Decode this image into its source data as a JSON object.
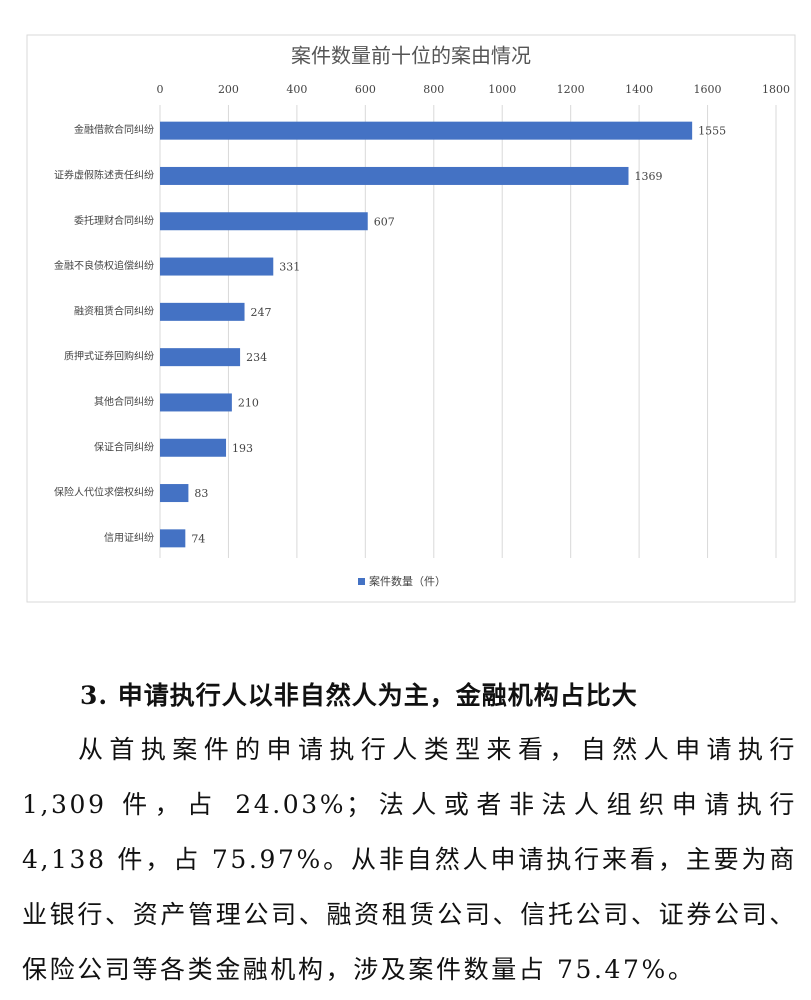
{
  "chart_data": {
    "type": "bar",
    "orientation": "horizontal",
    "title": "案件数量前十位的案由情况",
    "categories": [
      "金融借款合同纠纷",
      "证券虚假陈述责任纠纷",
      "委托理财合同纠纷",
      "金融不良债权追偿纠纷",
      "融资租赁合同纠纷",
      "质押式证券回购纠纷",
      "其他合同纠纷",
      "保证合同纠纷",
      "保险人代位求偿权纠纷",
      "信用证纠纷"
    ],
    "series": [
      {
        "name": "案件数量（件）",
        "color": "#4472c4",
        "values": [
          1555,
          1369,
          607,
          331,
          247,
          234,
          210,
          193,
          83,
          74
        ]
      }
    ],
    "xlim": [
      0,
      1800
    ],
    "xticks": [
      0,
      200,
      400,
      600,
      800,
      1000,
      1200,
      1400,
      1600,
      1800
    ],
    "grid": true,
    "legend": "bottom"
  },
  "document": {
    "heading": "3. 申请执行人以非自然人为主，金融机构占比大",
    "paragraph": "从首执案件的申请执行人类型来看，自然人申请执行 1,309 件，占 24.03%；法人或者非法人组织申请执行 4,138 件，占 75.97%。从非自然人申请执行来看，主要为商业银行、资产管理公司、融资租赁公司、信托公司、证券公司、保险公司等各类金融机构，涉及案件数量占 75.47%。"
  }
}
